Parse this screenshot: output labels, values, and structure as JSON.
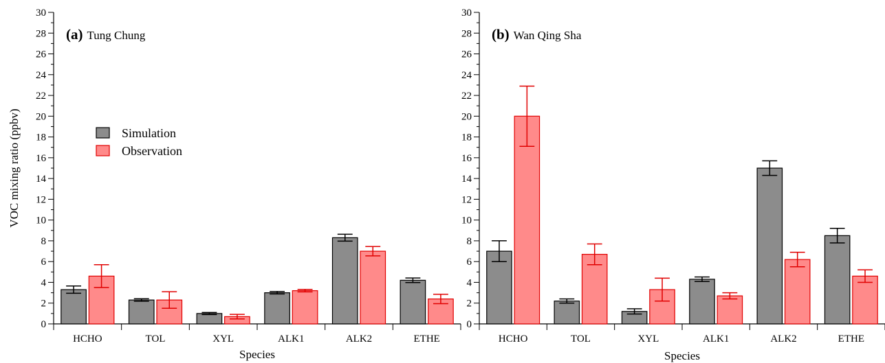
{
  "colors": {
    "simulation_fill": "#8c8c8c",
    "simulation_stroke": "#000000",
    "simulation_error": "#000000",
    "observation_fill": "#ff8a8a",
    "observation_stroke": "#e00000",
    "observation_error": "#e00000"
  },
  "legend": {
    "items": [
      {
        "label": "Simulation",
        "series": "simulation"
      },
      {
        "label": "Observation",
        "series": "observation"
      }
    ],
    "placement": "left, inside panel (a)"
  },
  "chart_data": [
    {
      "type": "bar",
      "panel_letter": "(a)",
      "panel_name": "Tung Chung",
      "xlabel": "Species",
      "ylabel": "VOC mixing ratio (ppbv)",
      "ylim": [
        0,
        30
      ],
      "yticks": [
        0,
        2,
        4,
        6,
        8,
        10,
        12,
        14,
        16,
        18,
        20,
        22,
        24,
        26,
        28,
        30
      ],
      "grid": false,
      "categories": [
        "HCHO",
        "TOL",
        "XYL",
        "ALK1",
        "ALK2",
        "ETHE"
      ],
      "series": [
        {
          "name": "Simulation",
          "key": "simulation",
          "values": [
            3.3,
            2.3,
            1.0,
            3.0,
            8.3,
            4.2
          ],
          "error": [
            0.35,
            0.12,
            0.1,
            0.12,
            0.33,
            0.22
          ]
        },
        {
          "name": "Observation",
          "key": "observation",
          "values": [
            4.6,
            2.3,
            0.7,
            3.2,
            7.0,
            2.4
          ],
          "error": [
            1.1,
            0.8,
            0.22,
            0.12,
            0.45,
            0.45
          ]
        }
      ]
    },
    {
      "type": "bar",
      "panel_letter": "(b)",
      "panel_name": "Wan Qing Sha",
      "xlabel": "Species",
      "ylabel": "",
      "ylim": [
        0,
        30
      ],
      "yticks": [
        0,
        2,
        4,
        6,
        8,
        10,
        12,
        14,
        16,
        18,
        20,
        22,
        24,
        26,
        28,
        30
      ],
      "grid": false,
      "categories": [
        "HCHO",
        "TOL",
        "XYL",
        "ALK1",
        "ALK2",
        "ETHE"
      ],
      "series": [
        {
          "name": "Simulation",
          "key": "simulation",
          "values": [
            7.0,
            2.2,
            1.2,
            4.3,
            15.0,
            8.5
          ],
          "error": [
            1.0,
            0.2,
            0.25,
            0.22,
            0.7,
            0.7
          ]
        },
        {
          "name": "Observation",
          "key": "observation",
          "values": [
            20.0,
            6.7,
            3.3,
            2.7,
            6.2,
            4.6
          ],
          "error": [
            2.9,
            1.0,
            1.1,
            0.3,
            0.7,
            0.6
          ]
        }
      ]
    }
  ]
}
